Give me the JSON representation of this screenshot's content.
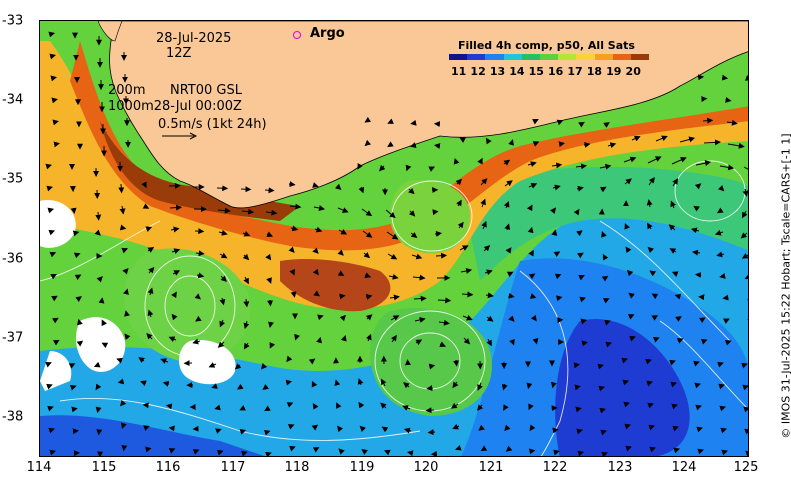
{
  "map": {
    "date": "28-Jul-2025",
    "hour": "12Z",
    "depth_shallow": "200m",
    "product": "NRT00 GSL",
    "depth_deep_and_time": "1000m28-Jul 00:00Z",
    "scale_vector": "0.5m/s (1kt 24h)",
    "argo_label": "Argo",
    "legend_title": "Filled 4h comp, p50, All Sats",
    "colorbar_ticks": [
      "11",
      "12",
      "13",
      "14",
      "15",
      "16",
      "17",
      "18",
      "19",
      "20"
    ],
    "x_ticks": [
      "114",
      "115",
      "116",
      "117",
      "118",
      "119",
      "120",
      "121",
      "122",
      "123",
      "124",
      "125"
    ],
    "y_ticks": [
      "-33",
      "-34",
      "-35",
      "-36",
      "-37",
      "-38"
    ],
    "credit": "© IMOS 31-Jul-2025 15:22 Hobart; Tscale=CARS+[-1 1]"
  },
  "colors": {
    "land": "#f9c896",
    "colormap": [
      "#12128c",
      "#1e3cd2",
      "#1e82f0",
      "#22c4d8",
      "#28be64",
      "#5ad23c",
      "#b4e632",
      "#fad23c",
      "#f5a01e",
      "#e66414",
      "#9a3c0a"
    ]
  }
}
